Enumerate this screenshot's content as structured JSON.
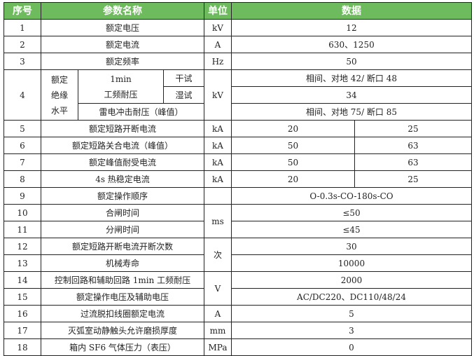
{
  "header": {
    "no": "序号",
    "name": "参数名称",
    "unit": "单位",
    "data": "数据"
  },
  "header_color": "#6dbb5c",
  "rows": [
    {
      "no": "1",
      "name": "额定电压",
      "unit": "kV",
      "value": "12"
    },
    {
      "no": "2",
      "name": "额定电流",
      "unit": "A",
      "value": "630、1250"
    },
    {
      "no": "3",
      "name": "额定频率",
      "unit": "Hz",
      "value": "50"
    },
    {
      "no": "4",
      "group": "额定绝缘水平",
      "group_lines": [
        "额定",
        "绝缘",
        "水平"
      ],
      "power_freq_line1": "1min",
      "power_freq_line2": "工频耐压",
      "dry": "干试",
      "wet": "湿试",
      "lightning": "雷电冲击耐压（峰值）",
      "unit": "kV",
      "dry_value": "相间、对地 42/ 断口 48",
      "wet_value": "34",
      "lightning_value": "相间、对地 75/ 断口 85"
    },
    {
      "no": "5",
      "name": "额定短路开断电流",
      "unit": "kA",
      "values": [
        "20",
        "25"
      ]
    },
    {
      "no": "6",
      "name": "额定短路关合电流（峰值）",
      "unit": "kA",
      "values": [
        "50",
        "63"
      ]
    },
    {
      "no": "7",
      "name": "额定峰值耐受电流",
      "unit": "kA",
      "values": [
        "50",
        "63"
      ]
    },
    {
      "no": "8",
      "name": "4s 热稳定电流",
      "unit": "kA",
      "values": [
        "20",
        "25"
      ]
    },
    {
      "no": "9",
      "name": "额定操作顺序",
      "unit": "",
      "value": "O-0.3s-CO-180s-CO"
    },
    {
      "no": "10",
      "name": "合闸时间",
      "unit": "ms",
      "value": "≤50"
    },
    {
      "no": "11",
      "name": "分闸时间",
      "value": "≤45"
    },
    {
      "no": "12",
      "name": "额定短路开断电流开断次数",
      "unit": "次",
      "value": "30"
    },
    {
      "no": "13",
      "name": "机械寿命",
      "value": "10000"
    },
    {
      "no": "14",
      "name": "控制回路和辅助回路 1min 工频耐压",
      "unit": "V",
      "value": "2000"
    },
    {
      "no": "15",
      "name": "额定操作电压及辅助电压",
      "value": "AC/DC220、DC110/48/24"
    },
    {
      "no": "16",
      "name": "过流脱扣线圈额定电流",
      "unit": "A",
      "value": "5"
    },
    {
      "no": "17",
      "name": "灭弧室动静触头允许磨损厚度",
      "unit": "mm",
      "value": "3"
    },
    {
      "no": "18",
      "name": "箱内 SF6 气体压力（表压）",
      "unit": "MPa",
      "value": "0"
    }
  ]
}
